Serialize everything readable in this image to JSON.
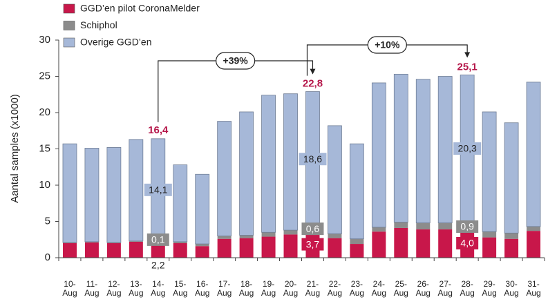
{
  "chart_data": {
    "type": "stacked_bar",
    "y_axis_label": "Aantal samples (x1000)",
    "categories": [
      "10-\nAug",
      "11-\nAug",
      "12-\nAug",
      "13-\nAug",
      "14-\nAug",
      "15-\nAug",
      "16-\nAug",
      "17-\nAug",
      "18-\nAug",
      "19-\nAug",
      "20-\nAug",
      "21-\nAug",
      "22-\nAug",
      "23-\nAug",
      "24-\nAug",
      "25-\nAug",
      "26-\nAug",
      "27-\nAug",
      "28-\nAug",
      "29-\nAug",
      "30-\nAug",
      "31-\nAug"
    ],
    "series": [
      {
        "name": "GGD’en pilot CoronaMelder",
        "color": "#c8174a",
        "values": [
          2.0,
          2.1,
          2.0,
          2.2,
          2.2,
          2.0,
          1.6,
          2.6,
          2.7,
          2.9,
          3.2,
          3.7,
          2.7,
          1.9,
          3.6,
          4.1,
          3.9,
          3.9,
          4.0,
          2.8,
          2.6,
          3.7
        ],
        "value_labels": [
          null,
          null,
          null,
          null,
          "2,2",
          null,
          null,
          null,
          null,
          null,
          null,
          "3,7",
          null,
          null,
          null,
          null,
          null,
          null,
          "4,0",
          null,
          null,
          null
        ]
      },
      {
        "name": "Schiphol",
        "color": "#8c8c8c",
        "values": [
          0.1,
          0.1,
          0.1,
          0.1,
          0.1,
          0.2,
          0.3,
          0.4,
          0.4,
          0.6,
          0.6,
          0.6,
          0.6,
          0.7,
          0.6,
          0.8,
          0.9,
          0.9,
          0.9,
          0.8,
          0.8,
          0.6
        ],
        "value_labels": [
          null,
          null,
          null,
          null,
          "0,1",
          null,
          null,
          null,
          null,
          null,
          null,
          "0,6",
          null,
          null,
          null,
          null,
          null,
          null,
          "0,9",
          null,
          null,
          null
        ]
      },
      {
        "name": "Overige GGD’en",
        "color": "#a6b8d8",
        "values": [
          13.6,
          12.9,
          13.1,
          14.0,
          14.1,
          10.6,
          9.6,
          15.8,
          17.0,
          18.9,
          18.8,
          18.6,
          14.9,
          13.1,
          19.9,
          20.4,
          19.8,
          20.2,
          20.3,
          16.5,
          15.2,
          19.9
        ],
        "value_labels": [
          null,
          null,
          null,
          null,
          "14,1",
          null,
          null,
          null,
          null,
          null,
          null,
          "18,6",
          null,
          null,
          null,
          null,
          null,
          null,
          "20,3",
          null,
          null,
          null
        ]
      }
    ],
    "totals": [
      {
        "category": "14-\nAug",
        "value": 16.4,
        "label": "16,4"
      },
      {
        "category": "21-\nAug",
        "value": 22.8,
        "label": "22,8"
      },
      {
        "category": "28-\nAug",
        "value": 25.1,
        "label": "25,1"
      }
    ],
    "annotations": [
      {
        "text": "+39%",
        "from": "14-\nAug",
        "to": "21-\nAug"
      },
      {
        "text": "+10%",
        "from": "21-\nAug",
        "to": "28-\nAug"
      }
    ],
    "ylim": [
      0,
      30
    ],
    "yticks": [
      0,
      5,
      10,
      15,
      20,
      25,
      30
    ],
    "legend": "top-left"
  }
}
